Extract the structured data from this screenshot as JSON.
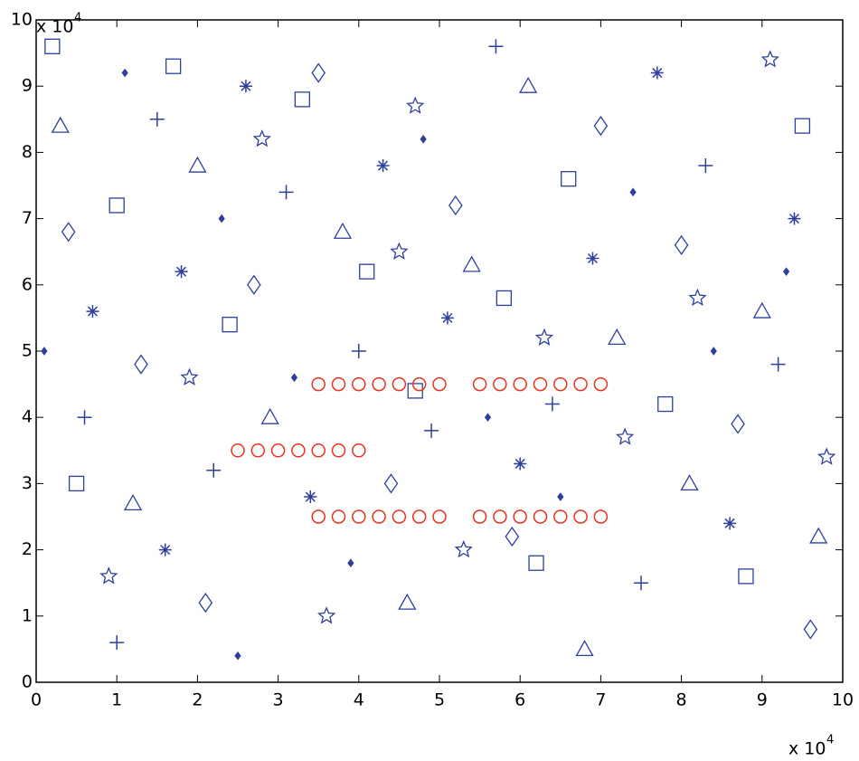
{
  "chart_data": {
    "type": "scatter",
    "x_multiplier": "x 10",
    "x_exponent": "4",
    "y_multiplier": "x 10",
    "y_exponent": "4",
    "xlim": [
      0,
      100000
    ],
    "ylim": [
      0,
      100000
    ],
    "xticks": [
      {
        "value": 0,
        "label": "0"
      },
      {
        "value": 10000,
        "label": "1"
      },
      {
        "value": 20000,
        "label": "2"
      },
      {
        "value": 30000,
        "label": "3"
      },
      {
        "value": 40000,
        "label": "4"
      },
      {
        "value": 50000,
        "label": "5"
      },
      {
        "value": 60000,
        "label": "6"
      },
      {
        "value": 70000,
        "label": "7"
      },
      {
        "value": 80000,
        "label": "8"
      },
      {
        "value": 90000,
        "label": "9"
      },
      {
        "value": 100000,
        "label": "10"
      }
    ],
    "yticks": [
      {
        "value": 0,
        "label": "0"
      },
      {
        "value": 10000,
        "label": "1"
      },
      {
        "value": 20000,
        "label": "2"
      },
      {
        "value": 30000,
        "label": "3"
      },
      {
        "value": 40000,
        "label": "4"
      },
      {
        "value": 50000,
        "label": "5"
      },
      {
        "value": 60000,
        "label": "6"
      },
      {
        "value": 70000,
        "label": "7"
      },
      {
        "value": 80000,
        "label": "8"
      },
      {
        "value": 90000,
        "label": "9"
      },
      {
        "value": 100000,
        "label": "10"
      }
    ],
    "series": [
      {
        "marker": "square",
        "color": "#2e3f9c",
        "x": [
          2000,
          10000,
          17000,
          24000,
          33000,
          41000,
          47000,
          58000,
          66000,
          78000,
          88000,
          95000,
          5000,
          62000
        ],
        "values": [
          96000,
          72000,
          93000,
          54000,
          88000,
          62000,
          44000,
          58000,
          76000,
          42000,
          16000,
          84000,
          30000,
          18000
        ]
      },
      {
        "marker": "triangle",
        "color": "#2e3f9c",
        "x": [
          3000,
          12000,
          20000,
          29000,
          38000,
          46000,
          54000,
          61000,
          72000,
          81000,
          90000,
          97000,
          68000
        ],
        "values": [
          84000,
          27000,
          78000,
          40000,
          68000,
          12000,
          63000,
          90000,
          52000,
          30000,
          56000,
          22000,
          5000
        ]
      },
      {
        "marker": "diamond",
        "color": "#2e3f9c",
        "x": [
          4000,
          13000,
          21000,
          27000,
          35000,
          44000,
          52000,
          59000,
          70000,
          80000,
          87000,
          96000
        ],
        "values": [
          68000,
          48000,
          12000,
          60000,
          92000,
          30000,
          72000,
          22000,
          84000,
          66000,
          39000,
          8000
        ]
      },
      {
        "marker": "plus",
        "color": "#2e3f9c",
        "x": [
          6000,
          15000,
          22000,
          31000,
          40000,
          49000,
          57000,
          64000,
          75000,
          83000,
          92000,
          10000
        ],
        "values": [
          40000,
          85000,
          32000,
          74000,
          50000,
          38000,
          96000,
          42000,
          15000,
          78000,
          48000,
          6000
        ]
      },
      {
        "marker": "asterisk",
        "color": "#2e3f9c",
        "x": [
          7000,
          16000,
          26000,
          34000,
          43000,
          51000,
          60000,
          69000,
          77000,
          86000,
          94000,
          18000
        ],
        "values": [
          56000,
          20000,
          90000,
          28000,
          78000,
          55000,
          33000,
          64000,
          92000,
          24000,
          70000,
          62000
        ]
      },
      {
        "marker": "star",
        "color": "#2e3f9c",
        "x": [
          9000,
          19000,
          28000,
          36000,
          45000,
          53000,
          63000,
          73000,
          82000,
          91000,
          98000,
          47000
        ],
        "values": [
          16000,
          46000,
          82000,
          10000,
          65000,
          20000,
          52000,
          37000,
          58000,
          94000,
          34000,
          87000
        ]
      },
      {
        "marker": "dot",
        "color": "#2e3f9c",
        "x": [
          1000,
          11000,
          23000,
          32000,
          39000,
          48000,
          56000,
          65000,
          74000,
          84000,
          93000,
          25000
        ],
        "values": [
          50000,
          92000,
          70000,
          46000,
          18000,
          82000,
          40000,
          28000,
          74000,
          50000,
          62000,
          4000
        ]
      },
      {
        "marker": "circle",
        "color": "#e8321e",
        "x": [
          35000,
          37500,
          40000,
          42500,
          45000,
          47500,
          50000,
          55000,
          57500,
          60000,
          62500,
          65000,
          67500,
          70000,
          25000,
          27500,
          30000,
          32500,
          35000,
          37500,
          40000,
          35000,
          37500,
          40000,
          42500,
          45000,
          47500,
          50000,
          55000,
          57500,
          60000,
          62500,
          65000,
          67500,
          70000
        ],
        "values": [
          45000,
          45000,
          45000,
          45000,
          45000,
          45000,
          45000,
          45000,
          45000,
          45000,
          45000,
          45000,
          45000,
          45000,
          35000,
          35000,
          35000,
          35000,
          35000,
          35000,
          35000,
          25000,
          25000,
          25000,
          25000,
          25000,
          25000,
          25000,
          25000,
          25000,
          25000,
          25000,
          25000,
          25000,
          25000
        ]
      }
    ]
  }
}
